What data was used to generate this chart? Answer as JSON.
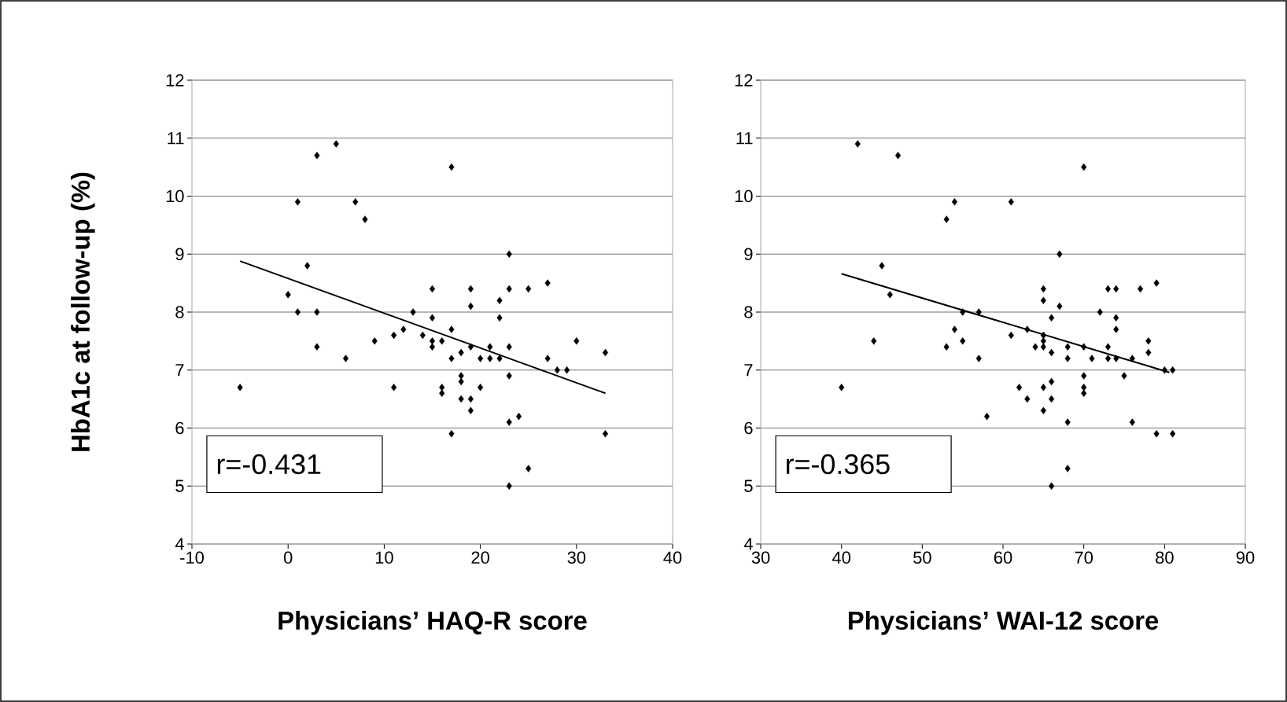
{
  "chart_data": [
    {
      "type": "scatter",
      "ylabel": "HbA1c at follow-up (%)",
      "xlabel": "Physicians’ HAQ-R score",
      "xlim": [
        -10,
        40
      ],
      "ylim": [
        4,
        12
      ],
      "xticks": [
        -10,
        0,
        10,
        20,
        30,
        40
      ],
      "yticks": [
        4,
        5,
        6,
        7,
        8,
        9,
        10,
        11,
        12
      ],
      "grid": "y",
      "annotations": [
        "r=-0.431"
      ],
      "series": [
        {
          "type": "scatter",
          "color": "#000000",
          "marker": "diamond",
          "x": [
            -5,
            0,
            1,
            1,
            2,
            3,
            3,
            3,
            5,
            6,
            7,
            8,
            9,
            11,
            11,
            12,
            13,
            14,
            15,
            15,
            15,
            15,
            16,
            16,
            16,
            17,
            17,
            17,
            17,
            18,
            18,
            18,
            18,
            19,
            19,
            19,
            19,
            19,
            20,
            20,
            21,
            21,
            22,
            22,
            22,
            23,
            23,
            23,
            23,
            23,
            23,
            24,
            25,
            25,
            27,
            27,
            28,
            29,
            30,
            33,
            33
          ],
          "values": [
            6.7,
            8.3,
            9.9,
            8.0,
            8.8,
            10.7,
            8.0,
            7.4,
            10.9,
            7.2,
            9.9,
            9.6,
            7.5,
            7.6,
            6.7,
            7.7,
            8.0,
            7.6,
            8.4,
            7.9,
            7.5,
            7.4,
            7.5,
            6.7,
            6.6,
            10.5,
            7.7,
            7.2,
            5.9,
            7.3,
            6.9,
            6.8,
            6.5,
            8.4,
            8.1,
            7.4,
            6.5,
            6.3,
            7.2,
            6.7,
            7.4,
            7.2,
            8.2,
            7.9,
            7.2,
            9.0,
            8.4,
            7.4,
            6.9,
            6.1,
            5.0,
            6.2,
            8.4,
            5.3,
            8.5,
            7.2,
            7.0,
            7.0,
            7.5,
            7.3,
            5.9
          ]
        },
        {
          "type": "line",
          "color": "#000000",
          "marker": "none",
          "line_style": "solid",
          "x": [
            -5,
            33
          ],
          "values": [
            8.88,
            6.6
          ]
        }
      ]
    },
    {
      "type": "scatter",
      "xlabel": "Physicians’ WAI-12 score",
      "xlim": [
        30,
        90
      ],
      "ylim": [
        4,
        12
      ],
      "xticks": [
        30,
        40,
        50,
        60,
        70,
        80,
        90
      ],
      "yticks": [
        4,
        5,
        6,
        7,
        8,
        9,
        10,
        11,
        12
      ],
      "grid": "y",
      "annotations": [
        "r=-0.365"
      ],
      "series": [
        {
          "type": "scatter",
          "color": "#000000",
          "marker": "diamond",
          "x": [
            42,
            47,
            70,
            54,
            61,
            53,
            67,
            45,
            65,
            65,
            67,
            73,
            74,
            77,
            79,
            46,
            66,
            72,
            74,
            74,
            54,
            57,
            55,
            44,
            53,
            55,
            57,
            61,
            63,
            65,
            64,
            65,
            65,
            66,
            68,
            68,
            70,
            71,
            73,
            73,
            74,
            76,
            78,
            78,
            80,
            81,
            75,
            70,
            70,
            70,
            40,
            62,
            63,
            65,
            66,
            66,
            65,
            58,
            68,
            76,
            79,
            81,
            68,
            66
          ],
          "values": [
            10.9,
            10.7,
            10.5,
            9.9,
            9.9,
            9.6,
            9.0,
            8.8,
            8.4,
            8.2,
            8.1,
            8.4,
            8.4,
            8.4,
            8.5,
            8.3,
            7.9,
            8.0,
            7.9,
            7.7,
            7.7,
            8.0,
            8.0,
            7.5,
            7.4,
            7.5,
            7.2,
            7.6,
            7.7,
            7.6,
            7.4,
            7.5,
            7.4,
            7.3,
            7.4,
            7.2,
            7.4,
            7.2,
            7.4,
            7.2,
            7.2,
            7.2,
            7.5,
            7.3,
            7.0,
            7.0,
            6.9,
            6.9,
            6.7,
            6.6,
            6.7,
            6.7,
            6.5,
            6.7,
            6.8,
            6.5,
            6.3,
            6.2,
            6.1,
            6.1,
            5.9,
            5.9,
            5.3,
            5.0
          ]
        },
        {
          "type": "line",
          "color": "#000000",
          "marker": "none",
          "line_style": "solid",
          "x": [
            40,
            80.6
          ],
          "values": [
            8.66,
            6.96
          ]
        }
      ]
    }
  ]
}
